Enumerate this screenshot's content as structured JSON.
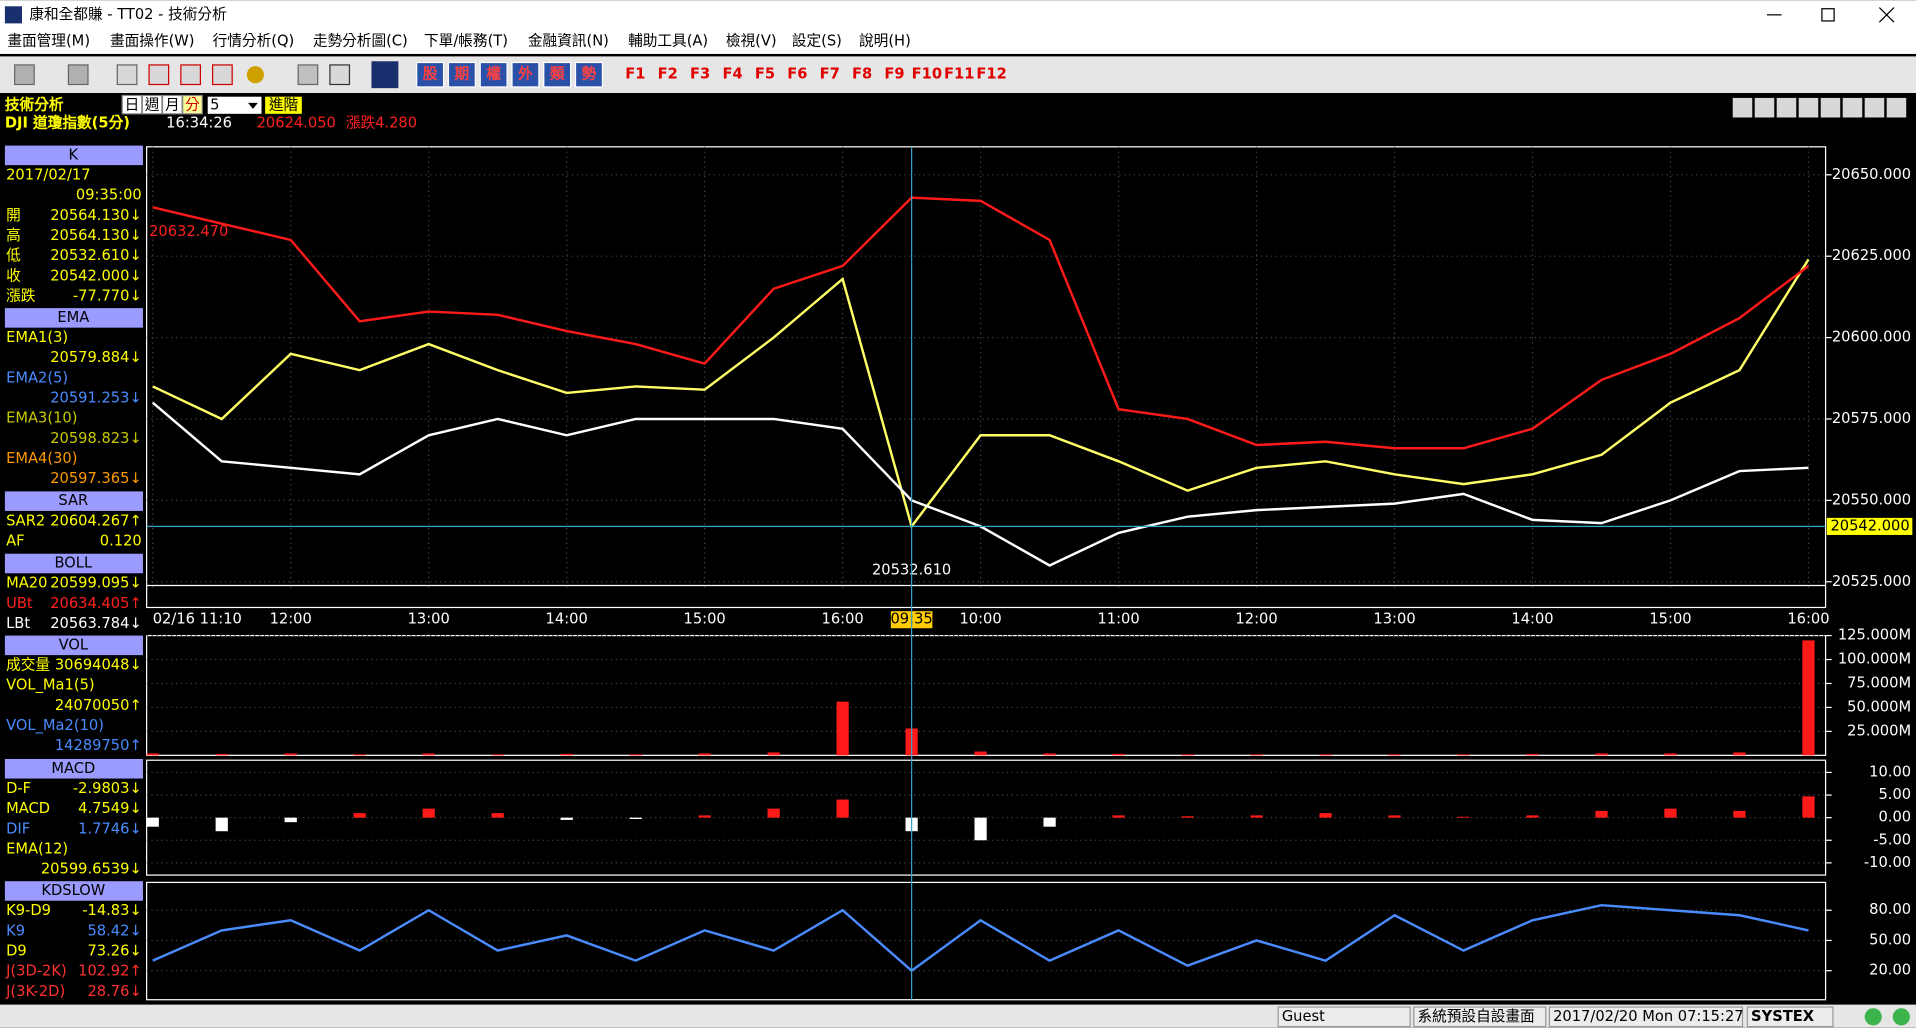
{
  "window": {
    "title": "康和全都賺 - TT02 - 技術分析"
  },
  "menu": [
    "畫面管理(M)",
    "畫面操作(W)",
    "行情分析(Q)",
    "走勢分析圖(C)",
    "下單/帳務(T)",
    "金融資訊(N)",
    "輔助工具(A)",
    "檢視(V)",
    "設定(S)",
    "說明(H)"
  ],
  "toolbar": {
    "tabs": [
      "股",
      "期",
      "權",
      "外",
      "類",
      "勢"
    ],
    "function_keys": [
      "F1",
      "F2",
      "F3",
      "F4",
      "F5",
      "F6",
      "F7",
      "F8",
      "F9",
      "F10",
      "F11",
      "F12"
    ]
  },
  "header": {
    "title": "技術分析",
    "periods": [
      "日",
      "週",
      "月",
      "分"
    ],
    "interval": "5",
    "advanced": "進階",
    "symbol": "DJI 道瓊指數(5分)",
    "time": "16:34:26",
    "price": "20624.050",
    "change": "漲跌4.280"
  },
  "side_panel": [
    {
      "title": "K",
      "rows": [
        {
          "label": "2017/02/17"
        },
        {
          "value": "09:35:00"
        },
        {
          "label": "開",
          "value": "20564.130↓"
        },
        {
          "label": "高",
          "value": "20564.130↓"
        },
        {
          "label": "低",
          "value": "20532.610↓"
        },
        {
          "label": "收",
          "value": "20542.000↓"
        },
        {
          "label": "漲跌",
          "value": "-77.770↓"
        }
      ]
    },
    {
      "title": "EMA",
      "rows": [
        {
          "label": "EMA1(3)"
        },
        {
          "value": "20579.884↓"
        },
        {
          "label": "EMA2(5)",
          "color": "#4a8cff"
        },
        {
          "value": "20591.253↓",
          "color": "#4a8cff"
        },
        {
          "label": "EMA3(10)",
          "color": "#c8c800"
        },
        {
          "value": "20598.823↓",
          "color": "#c8c800"
        },
        {
          "label": "EMA4(30)",
          "color": "#ff9900"
        },
        {
          "value": "20597.365↓",
          "color": "#ff9900"
        }
      ]
    },
    {
      "title": "SAR",
      "rows": [
        {
          "label": "SAR2",
          "value": "20604.267↑"
        },
        {
          "label": "AF",
          "value": "0.120"
        }
      ]
    },
    {
      "title": "BOLL",
      "rows": [
        {
          "label": "MA20",
          "value": "20599.095↓"
        },
        {
          "label": "UBt",
          "value": "20634.405↑",
          "color": "#ff2020"
        },
        {
          "label": "LBt",
          "value": "20563.784↓",
          "color": "#ffffff"
        }
      ]
    },
    {
      "title": "VOL",
      "rows": [
        {
          "label": "成交量",
          "value": "30694048↓"
        },
        {
          "label": "VOL_Ma1(5)"
        },
        {
          "value": "24070050↑"
        },
        {
          "label": "VOL_Ma2(10)",
          "color": "#4a8cff"
        },
        {
          "value": "14289750↑",
          "color": "#4a8cff"
        }
      ]
    },
    {
      "title": "MACD",
      "rows": [
        {
          "label": "D-F",
          "value": "-2.9803↓"
        },
        {
          "label": "MACD",
          "value": "4.7549↓"
        },
        {
          "label": "DIF",
          "value": "1.7746↓",
          "color": "#4a8cff"
        },
        {
          "label": "EMA(12)"
        },
        {
          "value": "20599.6539↓"
        }
      ]
    },
    {
      "title": "KDSLOW",
      "rows": [
        {
          "label": "K9-D9",
          "value": "-14.83↓"
        },
        {
          "label": "K9",
          "value": "58.42↓",
          "color": "#4a8cff"
        },
        {
          "label": "D9",
          "value": "73.26↓"
        },
        {
          "label": "J(3D-2K)",
          "value": "102.92↑",
          "color": "#ff3030"
        },
        {
          "label": "J(3K-2D)",
          "value": "28.76↓",
          "color": "#ff3030"
        }
      ]
    }
  ],
  "chart_data": [
    {
      "type": "line",
      "grid": true,
      "categories": [
        "02/16 11:10",
        null,
        "12:00",
        null,
        "13:00",
        null,
        "14:00",
        null,
        "15:00",
        null,
        "16:00",
        null,
        "10:00",
        null,
        "11:00",
        null,
        "12:00",
        null,
        "13:00",
        null,
        "14:00",
        null,
        "15:00",
        null,
        "16:00"
      ],
      "cursor_label": "09:35",
      "series": [
        {
          "color": "#ffff66",
          "values": [
            20585,
            20575,
            20595,
            20590,
            20598,
            20590,
            20583,
            20585,
            20584,
            20600,
            20618,
            20542,
            20570,
            20570,
            20562,
            20553,
            20560,
            20562,
            20558,
            20555,
            20558,
            20564,
            20580,
            20590,
            20624
          ]
        },
        {
          "color": "#ff1a1a",
          "values": [
            20640,
            20635,
            20630,
            20605,
            20608,
            20607,
            20602,
            20598,
            20592,
            20615,
            20622,
            20643,
            20642,
            20630,
            20578,
            20575,
            20567,
            20568,
            20566,
            20566,
            20572,
            20587,
            20595,
            20606,
            20622
          ]
        },
        {
          "color": "#ffffff",
          "values": [
            20580,
            20562,
            20560,
            20558,
            20570,
            20575,
            20570,
            20575,
            20575,
            20575,
            20572,
            20550,
            20542,
            20530,
            20540,
            20545,
            20547,
            20548,
            20549,
            20552,
            20544,
            20543,
            20550,
            20559,
            20560
          ]
        }
      ],
      "ylim": [
        20517.1,
        20658.6
      ],
      "yticks": [
        {
          "value": 20525,
          "label": "20525.000"
        },
        {
          "value": 20550,
          "label": "20550.000"
        },
        {
          "value": 20575,
          "label": "20575.000"
        },
        {
          "value": 20600,
          "label": "20600.000"
        },
        {
          "value": 20625,
          "label": "20625.000"
        },
        {
          "value": 20650,
          "label": "20650.000"
        }
      ],
      "high_label": {
        "value": 20632.47,
        "label": "20632.470"
      },
      "low_label": {
        "value": 20532.61,
        "label": "20532.610"
      },
      "current_price": {
        "value": 20542,
        "label": "20542.000"
      }
    },
    {
      "type": "bar",
      "color": "#ff1a1a",
      "grid": true,
      "values": [
        2,
        1.5,
        2,
        1,
        2,
        1,
        1.5,
        1,
        2,
        3,
        56,
        28,
        4,
        2,
        1.5,
        1,
        1,
        1,
        1,
        1,
        1.5,
        2,
        2,
        3,
        120
      ],
      "ylim": [
        0,
        125
      ],
      "yticks": [
        {
          "value": 25,
          "label": "25.000M"
        },
        {
          "value": 50,
          "label": "50.000M"
        },
        {
          "value": 75,
          "label": "75.000M"
        },
        {
          "value": 100,
          "label": "100.000M"
        },
        {
          "value": 125,
          "label": "125.000M"
        }
      ]
    },
    {
      "type": "bar",
      "color": "#ff1a1a",
      "negative_color": "#ffffff",
      "grid": true,
      "values": [
        -2,
        -3,
        -1,
        1,
        2,
        1,
        -0.5,
        -0.3,
        0.5,
        2,
        4,
        -3,
        -5,
        -2,
        0.5,
        0.3,
        0.5,
        1,
        0.5,
        0.2,
        0.5,
        1.5,
        2,
        1.5,
        4.7
      ],
      "ylim": [
        -12.7,
        12.7
      ],
      "yticks": [
        {
          "value": -10,
          "label": "-10.00"
        },
        {
          "value": -5,
          "label": "-5.00"
        },
        {
          "value": 0,
          "label": "0.00"
        },
        {
          "value": 5,
          "label": "5.00"
        },
        {
          "value": 10,
          "label": "10.00"
        }
      ]
    },
    {
      "type": "line",
      "grid": true,
      "series": [
        {
          "color": "#4a8cff",
          "values": [
            30,
            60,
            70,
            40,
            80,
            40,
            55,
            30,
            60,
            40,
            80,
            20,
            70,
            30,
            60,
            25,
            50,
            30,
            75,
            40,
            70,
            85,
            80,
            75,
            60
          ]
        }
      ],
      "ylim": [
        -8.8,
        107.6
      ],
      "yticks": [
        {
          "value": 20,
          "label": "20.00"
        },
        {
          "value": 50,
          "label": "50.00"
        },
        {
          "value": 80,
          "label": "80.00"
        }
      ]
    }
  ],
  "status_bar": [
    "Guest",
    "系統預設自設畫面",
    "2017/02/20 Mon 07:15:27",
    "SYSTEX"
  ]
}
